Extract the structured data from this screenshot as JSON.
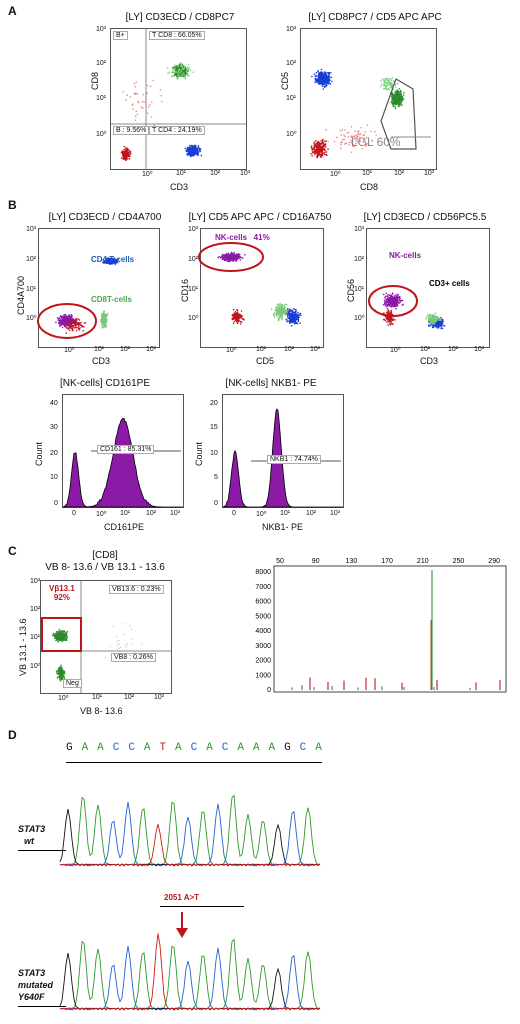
{
  "panels": {
    "A": {
      "letter": "A",
      "plot1": {
        "title": "[LY] CD3ECD / CD8PC7",
        "xlabel": "CD3",
        "ylabel": "CD8",
        "xticks": [
          "10⁰",
          "10¹",
          "10²",
          "10³"
        ],
        "yticks": [
          "10³",
          "10²",
          "10¹",
          "10⁰"
        ],
        "gates": {
          "ul": "B+",
          "ur": "T CD8 : 66.05%",
          "ll": "B : 9.56%",
          "lr": "T CD4 : 24.19%"
        }
      },
      "plot2": {
        "title": "[LY] CD8PC7 / CD5 APC APC",
        "xlabel": "CD8",
        "ylabel": "CD5",
        "xticks": [
          "10⁰",
          "10¹",
          "10²",
          "10³"
        ],
        "yticks": [
          "10³",
          "10²",
          "10¹",
          "10⁰"
        ],
        "annotation": "LGL 60%"
      }
    },
    "B": {
      "letter": "B",
      "plot1": {
        "title": "[LY] CD3ECD / CD4A700",
        "xlabel": "CD3",
        "ylabel": "CD4A700",
        "xticks": [
          "10⁰",
          "10¹",
          "10²",
          "10³"
        ],
        "yticks": [
          "10³",
          "10²",
          "10¹",
          "10⁰"
        ],
        "label_cd4": "CD4 T-cells",
        "label_cd8": "CD8T-cells"
      },
      "plot2": {
        "title": "[LY] CD5 APC APC / CD16A750",
        "xlabel": "CD5",
        "ylabel": "CD16",
        "xticks": [
          "10⁰",
          "10¹",
          "10²",
          "10³"
        ],
        "yticks": [
          "10³",
          "10²",
          "10¹",
          "10⁰"
        ],
        "label_nk": "NK-cells   41%"
      },
      "plot3": {
        "title": "[LY] CD3ECD / CD56PC5.5",
        "xlabel": "CD3",
        "ylabel": "CD56",
        "xticks": [
          "10⁰",
          "10¹",
          "10²",
          "10³"
        ],
        "yticks": [
          "10³",
          "10²",
          "10¹",
          "10⁰"
        ],
        "label_nk": "NK-cells",
        "label_cd3": "CD3+ cells"
      },
      "hist1": {
        "title": "[NK-cells] CD161PE",
        "xlabel": "CD161PE",
        "ylabel": "Count",
        "xticks": [
          "0",
          "10⁰",
          "10¹",
          "10²",
          "10³"
        ],
        "yticks": [
          "40",
          "30",
          "20",
          "10",
          "0"
        ],
        "gate": "CD161 : 85.31%"
      },
      "hist2": {
        "title": "[NK-cells] NKB1- PE",
        "xlabel": "NKB1- PE",
        "ylabel": "Count",
        "xticks": [
          "0",
          "10⁰",
          "10¹",
          "10²",
          "10³"
        ],
        "yticks": [
          "20",
          "15",
          "10",
          "5",
          "0"
        ],
        "gate": "NKB1 : 74.74%"
      }
    },
    "C": {
      "letter": "C",
      "plot": {
        "title_line1": "[CD8]",
        "title_line2": "VB 8- 13.6 / VB 13.1 - 13.6",
        "xlabel": "VB 8- 13.6",
        "ylabel": "VB 13.1 - 13.6",
        "xticks": [
          "10⁰",
          "10¹",
          "10²",
          "10³"
        ],
        "yticks": [
          "10³",
          "10²",
          "10¹",
          "10⁰"
        ],
        "vb_label": "Vβ13.1",
        "vb_pct": "92%",
        "gate_ur": "VB13.6 : 0.23%",
        "gate_lr": "VB8 : 0.26%",
        "gate_ll": "Neg"
      },
      "spectrum": {
        "xticks": [
          "50",
          "90",
          "130",
          "170",
          "210",
          "250",
          "290"
        ],
        "yticks": [
          "8000",
          "7000",
          "6000",
          "5000",
          "4000",
          "3000",
          "2000",
          "1000",
          "0"
        ]
      }
    },
    "D": {
      "letter": "D",
      "sequence": [
        "G",
        "A",
        "A",
        "C",
        "C",
        "A",
        "T",
        "A",
        "C",
        "A",
        "C",
        "A",
        "A",
        "A",
        "G",
        "C",
        "A"
      ],
      "wt_label_1": "STAT3",
      "wt_label_2": "wt",
      "mut_label_1": "STAT3",
      "mut_label_2": "mutated",
      "mut_label_3": "Y640F",
      "mutation": "2051 A>T"
    }
  },
  "colors": {
    "red": "#c0151b",
    "green": "#2e8b2e",
    "lightgreen": "#7fd17f",
    "blue": "#1a3fd6",
    "purple": "#8b1aa6",
    "black": "#000000",
    "A": "#2a9d2a",
    "C": "#2a5fd6",
    "G": "#111111",
    "T": "#d01818"
  }
}
